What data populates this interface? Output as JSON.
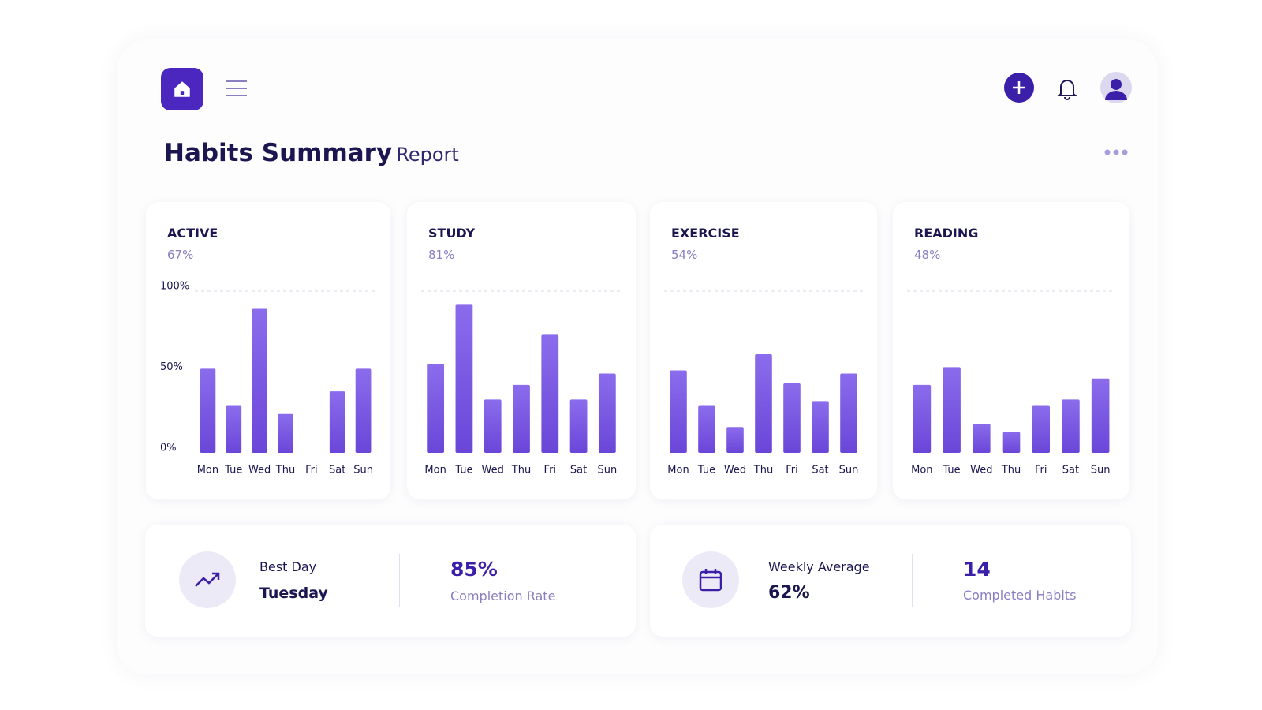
{
  "header": {
    "title": "Habits Summary",
    "subtitle": "Report"
  },
  "chart_data": [
    {
      "type": "bar",
      "title": "ACTIVE",
      "subtitle": "67%",
      "color": "#6a46d8",
      "categories": [
        "Mon",
        "Tue",
        "Wed",
        "Thu",
        "Fri",
        "Sat",
        "Sun"
      ],
      "values": [
        52,
        29,
        89,
        24,
        null,
        38,
        52
      ],
      "ylim": [
        0,
        100
      ],
      "yticks": [
        {
          "value": 0,
          "label": "0%"
        },
        {
          "value": 50,
          "label": "50%"
        },
        {
          "value": 100,
          "label": "100%"
        }
      ],
      "grid": true
    },
    {
      "type": "bar",
      "title": "STUDY",
      "subtitle": "81%",
      "color": "#6a46d8",
      "categories": [
        "Mon",
        "Tue",
        "Wed",
        "Thu",
        "Fri",
        "Sat",
        "Sun"
      ],
      "values": [
        55,
        92,
        33,
        42,
        73,
        33,
        49
      ],
      "ylim": [
        0,
        100
      ],
      "yticks": [
        50,
        100
      ],
      "tick_labels": false,
      "grid": true
    },
    {
      "type": "bar",
      "title": "EXERCISE",
      "subtitle": "54%",
      "color": "#6a46d8",
      "categories": [
        "Mon",
        "Tue",
        "Wed",
        "Thu",
        "Fri",
        "Sat",
        "Sun"
      ],
      "values": [
        51,
        29,
        16,
        61,
        43,
        32,
        49
      ],
      "ylim": [
        0,
        100
      ],
      "yticks": [
        50,
        100
      ],
      "tick_labels": false,
      "grid": true
    },
    {
      "type": "bar",
      "title": "READING",
      "subtitle": "48%",
      "color": "#6a46d8",
      "categories": [
        "Mon",
        "Tue",
        "Wed",
        "Thu",
        "Fri",
        "Sat",
        "Sun"
      ],
      "values": [
        42,
        53,
        18,
        13,
        29,
        33,
        46
      ],
      "ylim": [
        0,
        100
      ],
      "yticks": [
        50,
        100
      ],
      "tick_labels": false,
      "grid": true
    }
  ],
  "stats": [
    {
      "label": "Best Day",
      "value": "Tuesday"
    },
    {
      "value": "85%",
      "label": "Completion Rate"
    },
    {
      "label": "Weekly Average",
      "value": "62%"
    },
    {
      "value": "14",
      "label": "Completed Habits"
    }
  ]
}
